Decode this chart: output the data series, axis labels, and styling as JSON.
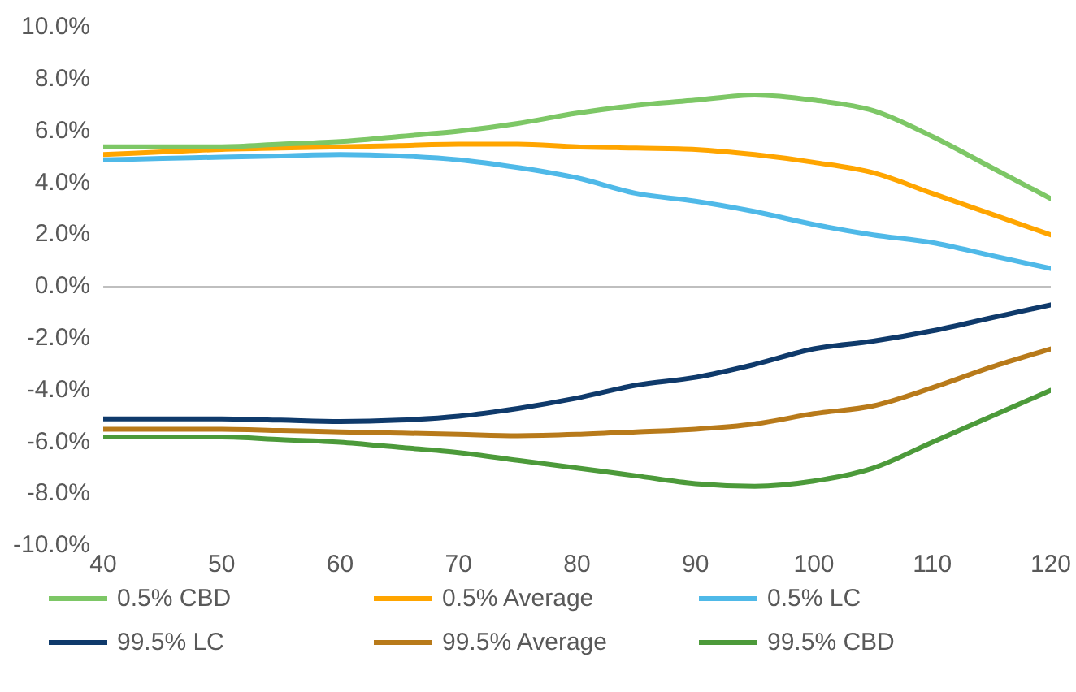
{
  "chart_data": {
    "type": "line",
    "x": [
      40,
      45,
      50,
      55,
      60,
      65,
      70,
      75,
      80,
      85,
      90,
      95,
      100,
      105,
      110,
      115,
      120
    ],
    "xlim": [
      40,
      120
    ],
    "xticks": [
      40,
      50,
      60,
      70,
      80,
      90,
      100,
      110,
      120
    ],
    "ylim": [
      -10,
      10
    ],
    "yticks": [
      {
        "value": -10,
        "label": "-10.0%"
      },
      {
        "value": -8,
        "label": "-8.0%"
      },
      {
        "value": -6,
        "label": "-6.0%"
      },
      {
        "value": -4,
        "label": "-4.0%"
      },
      {
        "value": -2,
        "label": "-2.0%"
      },
      {
        "value": 0,
        "label": "0.0%"
      },
      {
        "value": 2,
        "label": "2.0%"
      },
      {
        "value": 4,
        "label": "4.0%"
      },
      {
        "value": 6,
        "label": "6.0%"
      },
      {
        "value": 8,
        "label": "8.0%"
      },
      {
        "value": 10,
        "label": "10.0%"
      }
    ],
    "ref_lines": [
      {
        "axis": "y",
        "value": 0,
        "color": "#bfbfbf"
      }
    ],
    "grid": false,
    "legend": "bottom",
    "marker": "none",
    "line_style": "solid",
    "series": [
      {
        "name": "0.5% CBD",
        "color": "#7dc766",
        "values": [
          5.4,
          5.4,
          5.4,
          5.5,
          5.6,
          5.8,
          6.0,
          6.3,
          6.7,
          7.0,
          7.2,
          7.4,
          7.2,
          6.8,
          5.8,
          4.6,
          3.4
        ]
      },
      {
        "name": "0.5% Average",
        "color": "#ffa500",
        "values": [
          5.1,
          5.2,
          5.3,
          5.35,
          5.4,
          5.45,
          5.5,
          5.5,
          5.4,
          5.35,
          5.3,
          5.1,
          4.8,
          4.4,
          3.6,
          2.8,
          2.0
        ]
      },
      {
        "name": "0.5% LC",
        "color": "#4fb9e8",
        "values": [
          4.9,
          4.95,
          5.0,
          5.05,
          5.1,
          5.05,
          4.9,
          4.6,
          4.2,
          3.6,
          3.3,
          2.9,
          2.4,
          2.0,
          1.7,
          1.2,
          0.7
        ]
      },
      {
        "name": "99.5% LC",
        "color": "#0f3a6b",
        "values": [
          -5.1,
          -5.1,
          -5.1,
          -5.15,
          -5.2,
          -5.15,
          -5.0,
          -4.7,
          -4.3,
          -3.8,
          -3.5,
          -3.0,
          -2.4,
          -2.1,
          -1.7,
          -1.2,
          -0.7
        ]
      },
      {
        "name": "99.5% Average",
        "color": "#b87a1a",
        "values": [
          -5.5,
          -5.5,
          -5.5,
          -5.55,
          -5.6,
          -5.65,
          -5.7,
          -5.75,
          -5.7,
          -5.6,
          -5.5,
          -5.3,
          -4.9,
          -4.6,
          -3.9,
          -3.1,
          -2.4
        ]
      },
      {
        "name": "99.5% CBD",
        "color": "#4c9a3a",
        "values": [
          -5.8,
          -5.8,
          -5.8,
          -5.9,
          -6.0,
          -6.2,
          -6.4,
          -6.7,
          -7.0,
          -7.3,
          -7.6,
          -7.7,
          -7.5,
          -7.0,
          -6.0,
          -5.0,
          -4.0
        ]
      }
    ]
  }
}
